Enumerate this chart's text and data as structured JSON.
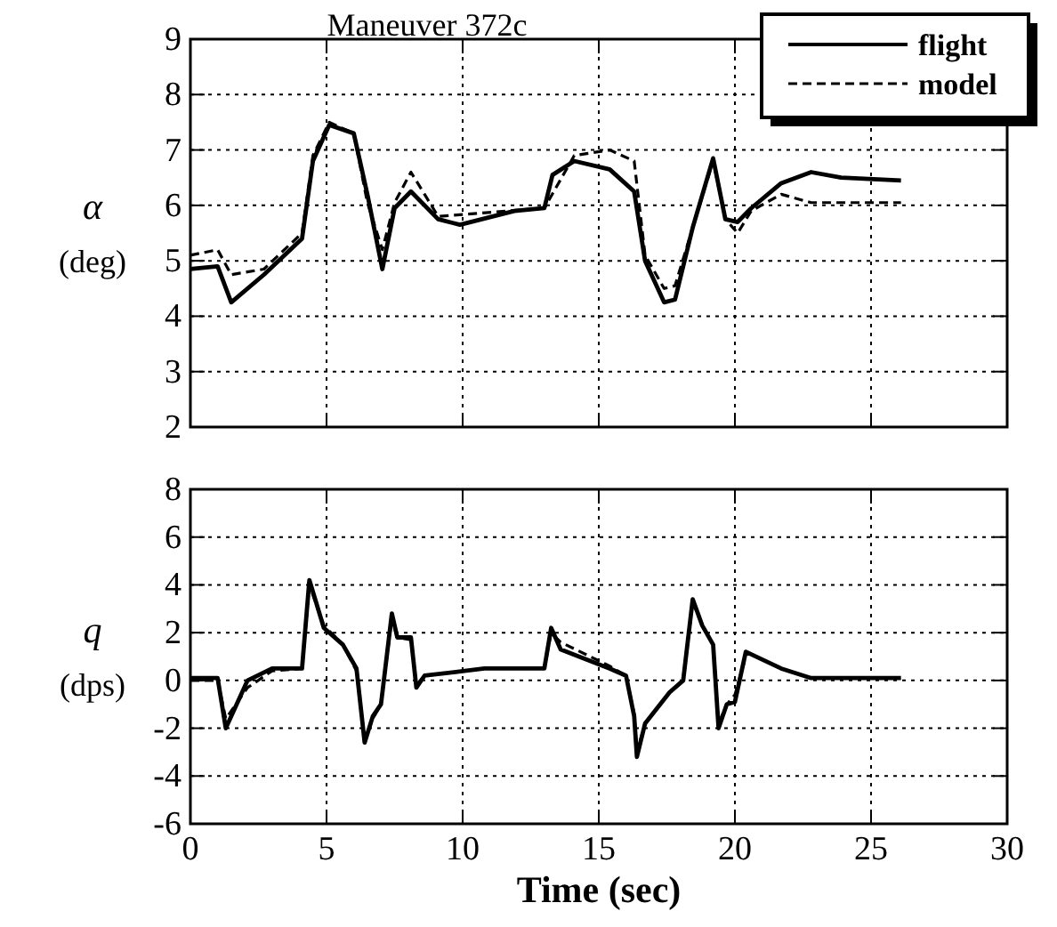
{
  "chart_data": [
    {
      "type": "line",
      "title": "Maneuver 372c",
      "ylabel": "α (deg)",
      "xlim": [
        0,
        30
      ],
      "xticks": [
        0,
        5,
        10,
        15,
        20,
        25,
        30
      ],
      "ylim": [
        2,
        9
      ],
      "yticks": [
        2,
        3,
        4,
        5,
        6,
        7,
        8,
        9
      ],
      "grid": true,
      "legend": "top right",
      "tick_labels": "y",
      "series": [
        {
          "name": "flight",
          "color": "#000000",
          "line_style": "solid",
          "x": [
            0,
            1,
            1.5,
            2.7,
            4.1,
            4.5,
            5.1,
            6,
            6.5,
            7.05,
            7.5,
            8.1,
            9.1,
            9.9,
            11.9,
            13,
            13.3,
            14.1,
            15.4,
            16.3,
            16.7,
            17.4,
            17.8,
            18.45,
            19.2,
            19.65,
            20.1,
            20.6,
            21.7,
            22.8,
            23.9,
            26.1
          ],
          "values": [
            4.85,
            4.9,
            4.25,
            4.75,
            5.4,
            6.8,
            7.45,
            7.3,
            6.2,
            4.85,
            5.95,
            6.25,
            5.75,
            5.65,
            5.9,
            5.95,
            6.55,
            6.8,
            6.65,
            6.25,
            5,
            4.25,
            4.3,
            5.6,
            6.85,
            5.75,
            5.7,
            5.95,
            6.4,
            6.6,
            6.5,
            6.45
          ]
        },
        {
          "name": "model",
          "color": "#000000",
          "line_style": "dashed",
          "x": [
            0,
            1,
            1.5,
            2.7,
            4.1,
            4.5,
            5.1,
            6,
            6.5,
            7.05,
            7.5,
            8.1,
            8.6,
            9.1,
            13,
            14.1,
            15.4,
            16.3,
            16.7,
            17.4,
            17.8,
            18.45,
            19.2,
            19.65,
            20.1,
            20.6,
            21.7,
            22.8,
            26.1
          ],
          "values": [
            5.1,
            5.2,
            4.75,
            4.85,
            5.5,
            6.9,
            7.5,
            7.3,
            6.05,
            5.2,
            6.05,
            6.6,
            6.2,
            5.8,
            5.95,
            6.9,
            7,
            6.8,
            5.1,
            4.5,
            4.55,
            5.6,
            6.8,
            5.75,
            5.5,
            5.9,
            6.2,
            6.05,
            6.05
          ]
        }
      ]
    },
    {
      "type": "line",
      "xlabel": "Time  (sec)",
      "ylabel": "q (dps)",
      "xlim": [
        0,
        30
      ],
      "xticks": [
        0,
        5,
        10,
        15,
        20,
        25,
        30
      ],
      "ylim": [
        -6,
        8
      ],
      "yticks": [
        -6,
        -4,
        -2,
        0,
        2,
        4,
        6,
        8
      ],
      "grid": true,
      "series": [
        {
          "color": "#000000",
          "line_style": "solid",
          "x": [
            0,
            1,
            1.3,
            2.1,
            3,
            4.1,
            4.37,
            4.9,
            5.6,
            6.1,
            6.4,
            6.7,
            7,
            7.4,
            7.6,
            8.1,
            8.3,
            8.6,
            10.8,
            13,
            13.25,
            13.6,
            15.4,
            16,
            16.3,
            16.4,
            16.7,
            17.6,
            18.1,
            18.45,
            18.8,
            19.2,
            19.4,
            19.7,
            20,
            20.4,
            21.7,
            22.8,
            26.1
          ],
          "values": [
            0.1,
            0.1,
            -2,
            0,
            0.5,
            0.5,
            4.2,
            2.2,
            1.5,
            0.5,
            -2.6,
            -1.5,
            -1,
            2.8,
            1.8,
            1.8,
            -0.3,
            0.2,
            0.5,
            0.5,
            2.2,
            1.3,
            0.5,
            0.2,
            -1.5,
            -3.2,
            -1.8,
            -0.5,
            0,
            3.4,
            2.3,
            1.5,
            -2,
            -1,
            -0.9,
            1.2,
            0.5,
            0.1,
            0.1
          ]
        },
        {
          "color": "#000000",
          "line_style": "dashed",
          "x": [
            0,
            1,
            1.3,
            2.1,
            3,
            4.1,
            4.37,
            4.9,
            5.6,
            6.1,
            6.4,
            6.7,
            7,
            7.4,
            7.6,
            8.1,
            8.3,
            8.6,
            10.8,
            13,
            13.25,
            13.6,
            15.4,
            16,
            16.3,
            16.4,
            16.7,
            17.6,
            18.1,
            18.45,
            18.8,
            19.2,
            19.4,
            19.7,
            20,
            20.4
          ],
          "values": [
            0,
            0,
            -1.6,
            -0.3,
            0.4,
            0.5,
            4,
            2.3,
            1.5,
            0.4,
            -2.5,
            -1.6,
            -1,
            2.6,
            1.8,
            1.7,
            -0.2,
            0.2,
            0.5,
            0.5,
            2,
            1.6,
            0.6,
            0.2,
            -1.4,
            -3,
            -1.8,
            -0.5,
            0,
            3.3,
            2.3,
            1.5,
            -1.8,
            -1,
            -0.6,
            1
          ]
        }
      ]
    }
  ]
}
